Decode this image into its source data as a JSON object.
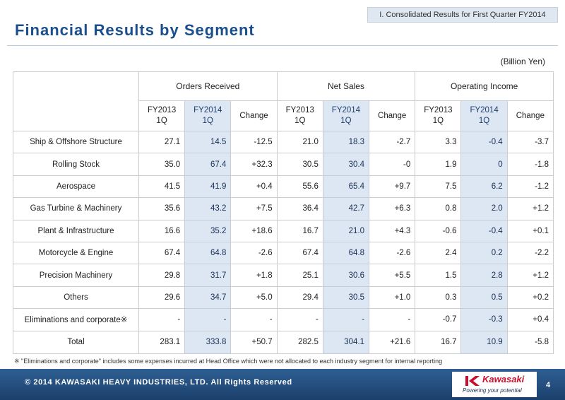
{
  "header": {
    "section_tab": "I. Consolidated Results for First Quarter FY2014",
    "title": "Financial Results by Segment",
    "unit_note": "(Billion Yen)"
  },
  "table": {
    "groups": [
      "Orders Received",
      "Net Sales",
      "Operating Income"
    ],
    "period_headers": {
      "fy2013_line1": "FY2013",
      "fy2013_line2": "1Q",
      "fy2014_line1": "FY2014",
      "fy2014_line2": "1Q",
      "change": "Change"
    },
    "rows": [
      {
        "segment": "Ship & Offshore Structure",
        "orders": [
          "27.1",
          "14.5",
          "-12.5"
        ],
        "sales": [
          "21.0",
          "18.3",
          "-2.7"
        ],
        "income": [
          "3.3",
          "-0.4",
          "-3.7"
        ]
      },
      {
        "segment": "Rolling Stock",
        "orders": [
          "35.0",
          "67.4",
          "+32.3"
        ],
        "sales": [
          "30.5",
          "30.4",
          "-0"
        ],
        "income": [
          "1.9",
          "0",
          "-1.8"
        ]
      },
      {
        "segment": "Aerospace",
        "orders": [
          "41.5",
          "41.9",
          "+0.4"
        ],
        "sales": [
          "55.6",
          "65.4",
          "+9.7"
        ],
        "income": [
          "7.5",
          "6.2",
          "-1.2"
        ]
      },
      {
        "segment": "Gas Turbine & Machinery",
        "orders": [
          "35.6",
          "43.2",
          "+7.5"
        ],
        "sales": [
          "36.4",
          "42.7",
          "+6.3"
        ],
        "income": [
          "0.8",
          "2.0",
          "+1.2"
        ]
      },
      {
        "segment": "Plant & Infrastructure",
        "orders": [
          "16.6",
          "35.2",
          "+18.6"
        ],
        "sales": [
          "16.7",
          "21.0",
          "+4.3"
        ],
        "income": [
          "-0.6",
          "-0.4",
          "+0.1"
        ]
      },
      {
        "segment": "Motorcycle & Engine",
        "orders": [
          "67.4",
          "64.8",
          "-2.6"
        ],
        "sales": [
          "67.4",
          "64.8",
          "-2.6"
        ],
        "income": [
          "2.4",
          "0.2",
          "-2.2"
        ]
      },
      {
        "segment": "Precision Machinery",
        "orders": [
          "29.8",
          "31.7",
          "+1.8"
        ],
        "sales": [
          "25.1",
          "30.6",
          "+5.5"
        ],
        "income": [
          "1.5",
          "2.8",
          "+1.2"
        ]
      },
      {
        "segment": "Others",
        "orders": [
          "29.6",
          "34.7",
          "+5.0"
        ],
        "sales": [
          "29.4",
          "30.5",
          "+1.0"
        ],
        "income": [
          "0.3",
          "0.5",
          "+0.2"
        ]
      },
      {
        "segment": "Eliminations and corporate※",
        "orders": [
          "-",
          "-",
          "-"
        ],
        "sales": [
          "-",
          "-",
          "-"
        ],
        "income": [
          "-0.7",
          "-0.3",
          "+0.4"
        ]
      },
      {
        "segment": "Total",
        "orders": [
          "283.1",
          "333.8",
          "+50.7"
        ],
        "sales": [
          "282.5",
          "304.1",
          "+21.6"
        ],
        "income": [
          "16.7",
          "10.9",
          "-5.8"
        ]
      }
    ]
  },
  "footnote": "※ \"Eliminations and corporate\" includes some expenses incurred at Head Office which were not allocated to each industry segment for internal reporting",
  "footer": {
    "copyright": "© 2014 KAWASAKI HEAVY INDUSTRIES, LTD. All Rights Reserved",
    "logo_text": "Kawasaki",
    "tagline": "Powering your potential",
    "page_number": "4"
  },
  "colors": {
    "title_blue": "#1a4e8c",
    "fy2014_highlight": "#dce7f3",
    "footer_blue": "#1b3f6b",
    "logo_red": "#c8102e"
  }
}
